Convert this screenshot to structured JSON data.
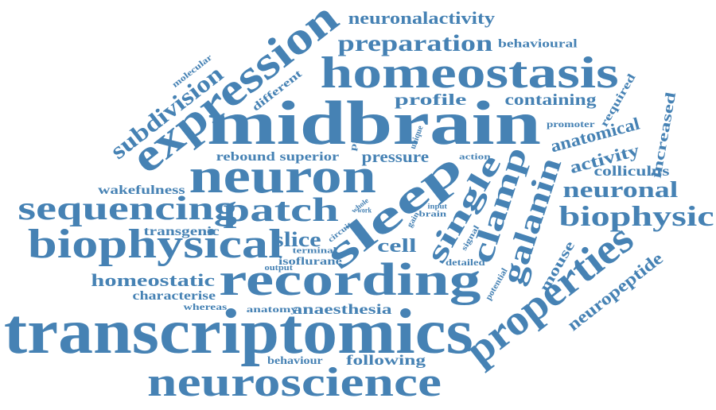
{
  "color": "#4682b4",
  "words": [
    {
      "id": "transcriptomics",
      "text": "transcriptomics"
    },
    {
      "id": "midbrain",
      "text": "midbrain"
    },
    {
      "id": "homeostasis",
      "text": "homeostasis"
    },
    {
      "id": "expression",
      "text": "expression"
    },
    {
      "id": "neuron",
      "text": "neuron"
    },
    {
      "id": "recording",
      "text": "recording"
    },
    {
      "id": "sleep",
      "text": "sleep"
    },
    {
      "id": "neuroscience",
      "text": "neuroscience"
    },
    {
      "id": "properties",
      "text": "properties"
    },
    {
      "id": "biophysical",
      "text": "biophysical"
    },
    {
      "id": "sequencing",
      "text": "sequencing"
    },
    {
      "id": "patch",
      "text": "patch"
    },
    {
      "id": "single",
      "text": "single"
    },
    {
      "id": "clamp",
      "text": "clamp"
    },
    {
      "id": "galanin",
      "text": "galanin"
    },
    {
      "id": "biophysic",
      "text": "biophysic"
    },
    {
      "id": "subdivision",
      "text": "subdivision"
    },
    {
      "id": "preparation",
      "text": "preparation"
    },
    {
      "id": "neuronalactivity",
      "text": "neuronalactivity"
    },
    {
      "id": "neuronal",
      "text": "neuronal"
    },
    {
      "id": "neuropeptide",
      "text": "neuropeptide"
    },
    {
      "id": "anatomical",
      "text": "anatomical"
    },
    {
      "id": "activity",
      "text": "activity"
    },
    {
      "id": "profile",
      "text": "profile"
    },
    {
      "id": "containing",
      "text": "containing"
    },
    {
      "id": "homeostatic",
      "text": "homeostatic"
    },
    {
      "id": "slice",
      "text": "slice"
    },
    {
      "id": "cell",
      "text": "cell"
    },
    {
      "id": "mouse",
      "text": "mouse"
    },
    {
      "id": "increased",
      "text": "increased"
    },
    {
      "id": "colliculus",
      "text": "colliculus"
    },
    {
      "id": "rebound",
      "text": "rebound"
    },
    {
      "id": "superior",
      "text": "superior"
    },
    {
      "id": "pressure",
      "text": "pressure"
    },
    {
      "id": "wakefulness",
      "text": "wakefulness"
    },
    {
      "id": "characterise",
      "text": "characterise"
    },
    {
      "id": "transgenic",
      "text": "transgenic"
    },
    {
      "id": "anaesthesia",
      "text": "anaesthesia"
    },
    {
      "id": "following",
      "text": "following"
    },
    {
      "id": "behaviour",
      "text": "behaviour"
    },
    {
      "id": "behavioural",
      "text": "behavioural"
    },
    {
      "id": "isoflurane",
      "text": "isoflurane"
    },
    {
      "id": "different",
      "text": "different"
    },
    {
      "id": "molecular",
      "text": "molecular"
    },
    {
      "id": "required",
      "text": "required"
    },
    {
      "id": "promoter",
      "text": "promoter"
    },
    {
      "id": "anatomy",
      "text": "anatomy"
    },
    {
      "id": "whereas",
      "text": "whereas"
    },
    {
      "id": "terminal",
      "text": "terminal"
    },
    {
      "id": "detailed",
      "text": "detailed"
    },
    {
      "id": "potential",
      "text": "potential"
    },
    {
      "id": "action",
      "text": "action"
    },
    {
      "id": "brain",
      "text": "brain"
    },
    {
      "id": "provide",
      "text": "provide"
    },
    {
      "id": "unique",
      "text": "unique"
    },
    {
      "id": "whole",
      "text": "whole"
    },
    {
      "id": "work",
      "text": "work"
    },
    {
      "id": "circuit",
      "text": "circuit"
    },
    {
      "id": "output",
      "text": "output"
    },
    {
      "id": "signal",
      "text": "signal"
    },
    {
      "id": "gain",
      "text": "gain"
    },
    {
      "id": "input",
      "text": "input"
    }
  ]
}
